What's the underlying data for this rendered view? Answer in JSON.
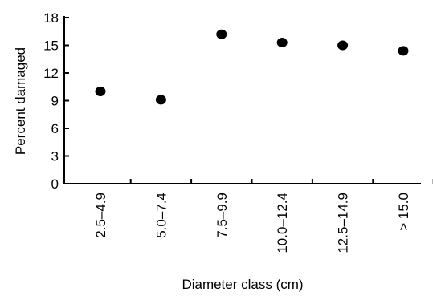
{
  "chart_data": {
    "type": "scatter",
    "xlabel": "Diameter class (cm)",
    "ylabel": "Percent damaged",
    "categories": [
      "2.5–4.9",
      "5.0–7.4",
      "7.5–9.9",
      "10.0–12.4",
      "12.5–14.9",
      "> 15.0"
    ],
    "values": [
      10.0,
      9.1,
      16.2,
      15.3,
      15.0,
      14.4
    ],
    "yticks": [
      0,
      3,
      6,
      9,
      12,
      15,
      18
    ],
    "ylim": [
      0,
      18
    ],
    "grid": false,
    "legend": "none",
    "marker_color": "#000000"
  }
}
